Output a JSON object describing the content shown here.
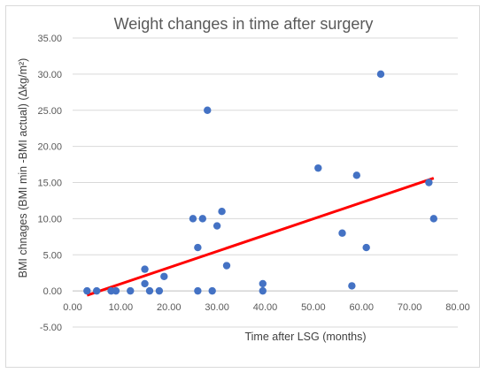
{
  "chart_data": {
    "type": "scatter",
    "title": "Weight changes in time after surgery",
    "xlabel": "Time after LSG (months)",
    "ylabel": "BMI chnages (BMI min -BMI actual) (Δkg/m²)",
    "xlim": [
      0,
      80
    ],
    "ylim": [
      -5,
      35
    ],
    "x_ticks": [
      "0.00",
      "10.00",
      "20.00",
      "30.00",
      "40.00",
      "50.00",
      "60.00",
      "70.00",
      "80.00"
    ],
    "y_ticks": [
      "-5.00",
      "0.00",
      "5.00",
      "10.00",
      "15.00",
      "20.00",
      "25.00",
      "30.00",
      "35.00"
    ],
    "grid": "horizontal",
    "point_color": "#4472c4",
    "trendline_color": "#ff0000",
    "trendline": {
      "x": [
        3,
        75
      ],
      "y": [
        -0.6,
        15.6
      ]
    },
    "points": [
      {
        "x": 3,
        "y": 0
      },
      {
        "x": 5,
        "y": 0
      },
      {
        "x": 8,
        "y": 0
      },
      {
        "x": 9,
        "y": 0
      },
      {
        "x": 12,
        "y": 0
      },
      {
        "x": 15,
        "y": 3
      },
      {
        "x": 15,
        "y": 1
      },
      {
        "x": 16,
        "y": 0
      },
      {
        "x": 18,
        "y": 0
      },
      {
        "x": 19,
        "y": 2
      },
      {
        "x": 25,
        "y": 10
      },
      {
        "x": 26,
        "y": 6
      },
      {
        "x": 26,
        "y": 0
      },
      {
        "x": 27,
        "y": 10
      },
      {
        "x": 28,
        "y": 25
      },
      {
        "x": 29,
        "y": 0
      },
      {
        "x": 30,
        "y": 9
      },
      {
        "x": 31,
        "y": 11
      },
      {
        "x": 32,
        "y": 3.5
      },
      {
        "x": 39.5,
        "y": 1
      },
      {
        "x": 39.5,
        "y": 0
      },
      {
        "x": 51,
        "y": 17
      },
      {
        "x": 56,
        "y": 8
      },
      {
        "x": 58,
        "y": 0.7
      },
      {
        "x": 59,
        "y": 16
      },
      {
        "x": 61,
        "y": 6
      },
      {
        "x": 64,
        "y": 30
      },
      {
        "x": 74,
        "y": 15
      },
      {
        "x": 75,
        "y": 10
      }
    ]
  }
}
